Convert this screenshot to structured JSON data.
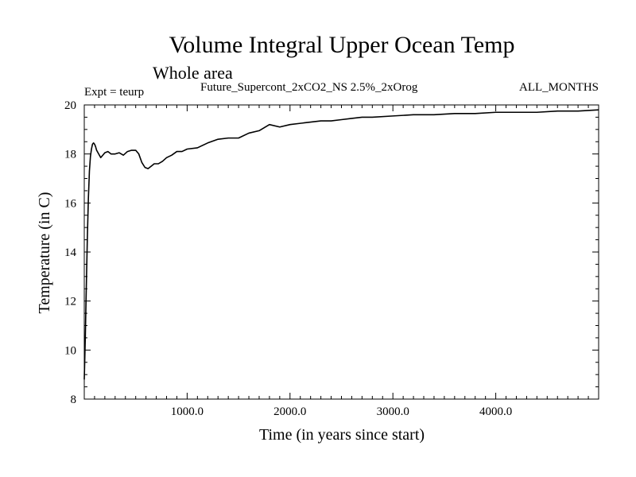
{
  "chart_data": {
    "type": "line",
    "title": "Volume Integral Upper Ocean Temp",
    "subtitle": "Whole area",
    "annotations": {
      "experiment": "Expt = teurp",
      "run_name": "Future_Supercont_2xCO2_NS 2.5%_2xOrog",
      "season": "ALL_MONTHS"
    },
    "xlabel": "Time (in years since start)",
    "ylabel": "Temperature (in C)",
    "xlim": [
      0,
      5000
    ],
    "ylim": [
      8,
      20
    ],
    "x_ticks": [
      1000,
      2000,
      3000,
      4000
    ],
    "x_tick_labels": [
      "1000.0",
      "2000.0",
      "3000.0",
      "4000.0"
    ],
    "y_ticks": [
      8,
      10,
      12,
      14,
      16,
      18,
      20
    ],
    "y_tick_labels": [
      "8",
      "10",
      "12",
      "14",
      "16",
      "18",
      "20"
    ],
    "grid": false,
    "legend": "none",
    "series": [
      {
        "color": "#000000",
        "x": [
          0,
          10,
          20,
          30,
          40,
          50,
          60,
          70,
          80,
          90,
          100,
          110,
          120,
          140,
          160,
          180,
          200,
          230,
          260,
          300,
          340,
          380,
          420,
          460,
          500,
          530,
          560,
          590,
          620,
          650,
          680,
          720,
          760,
          800,
          850,
          900,
          950,
          1000,
          1100,
          1200,
          1300,
          1400,
          1500,
          1600,
          1700,
          1800,
          1900,
          2000,
          2100,
          2200,
          2300,
          2400,
          2500,
          2600,
          2700,
          2800,
          3000,
          3200,
          3400,
          3600,
          3800,
          4000,
          4200,
          4400,
          4600,
          4800,
          5000
        ],
        "values": [
          8.8,
          10.5,
          12.6,
          14.6,
          16.2,
          17.3,
          17.9,
          18.2,
          18.4,
          18.45,
          18.4,
          18.3,
          18.15,
          18.0,
          17.85,
          17.95,
          18.05,
          18.1,
          18.0,
          18.0,
          18.05,
          17.95,
          18.1,
          18.15,
          18.15,
          18.0,
          17.65,
          17.45,
          17.4,
          17.5,
          17.6,
          17.6,
          17.7,
          17.85,
          17.95,
          18.1,
          18.1,
          18.2,
          18.25,
          18.45,
          18.6,
          18.65,
          18.65,
          18.85,
          18.95,
          19.2,
          19.1,
          19.2,
          19.25,
          19.3,
          19.35,
          19.35,
          19.4,
          19.45,
          19.5,
          19.5,
          19.55,
          19.6,
          19.6,
          19.65,
          19.65,
          19.7,
          19.7,
          19.7,
          19.75,
          19.75,
          19.8
        ]
      }
    ]
  }
}
